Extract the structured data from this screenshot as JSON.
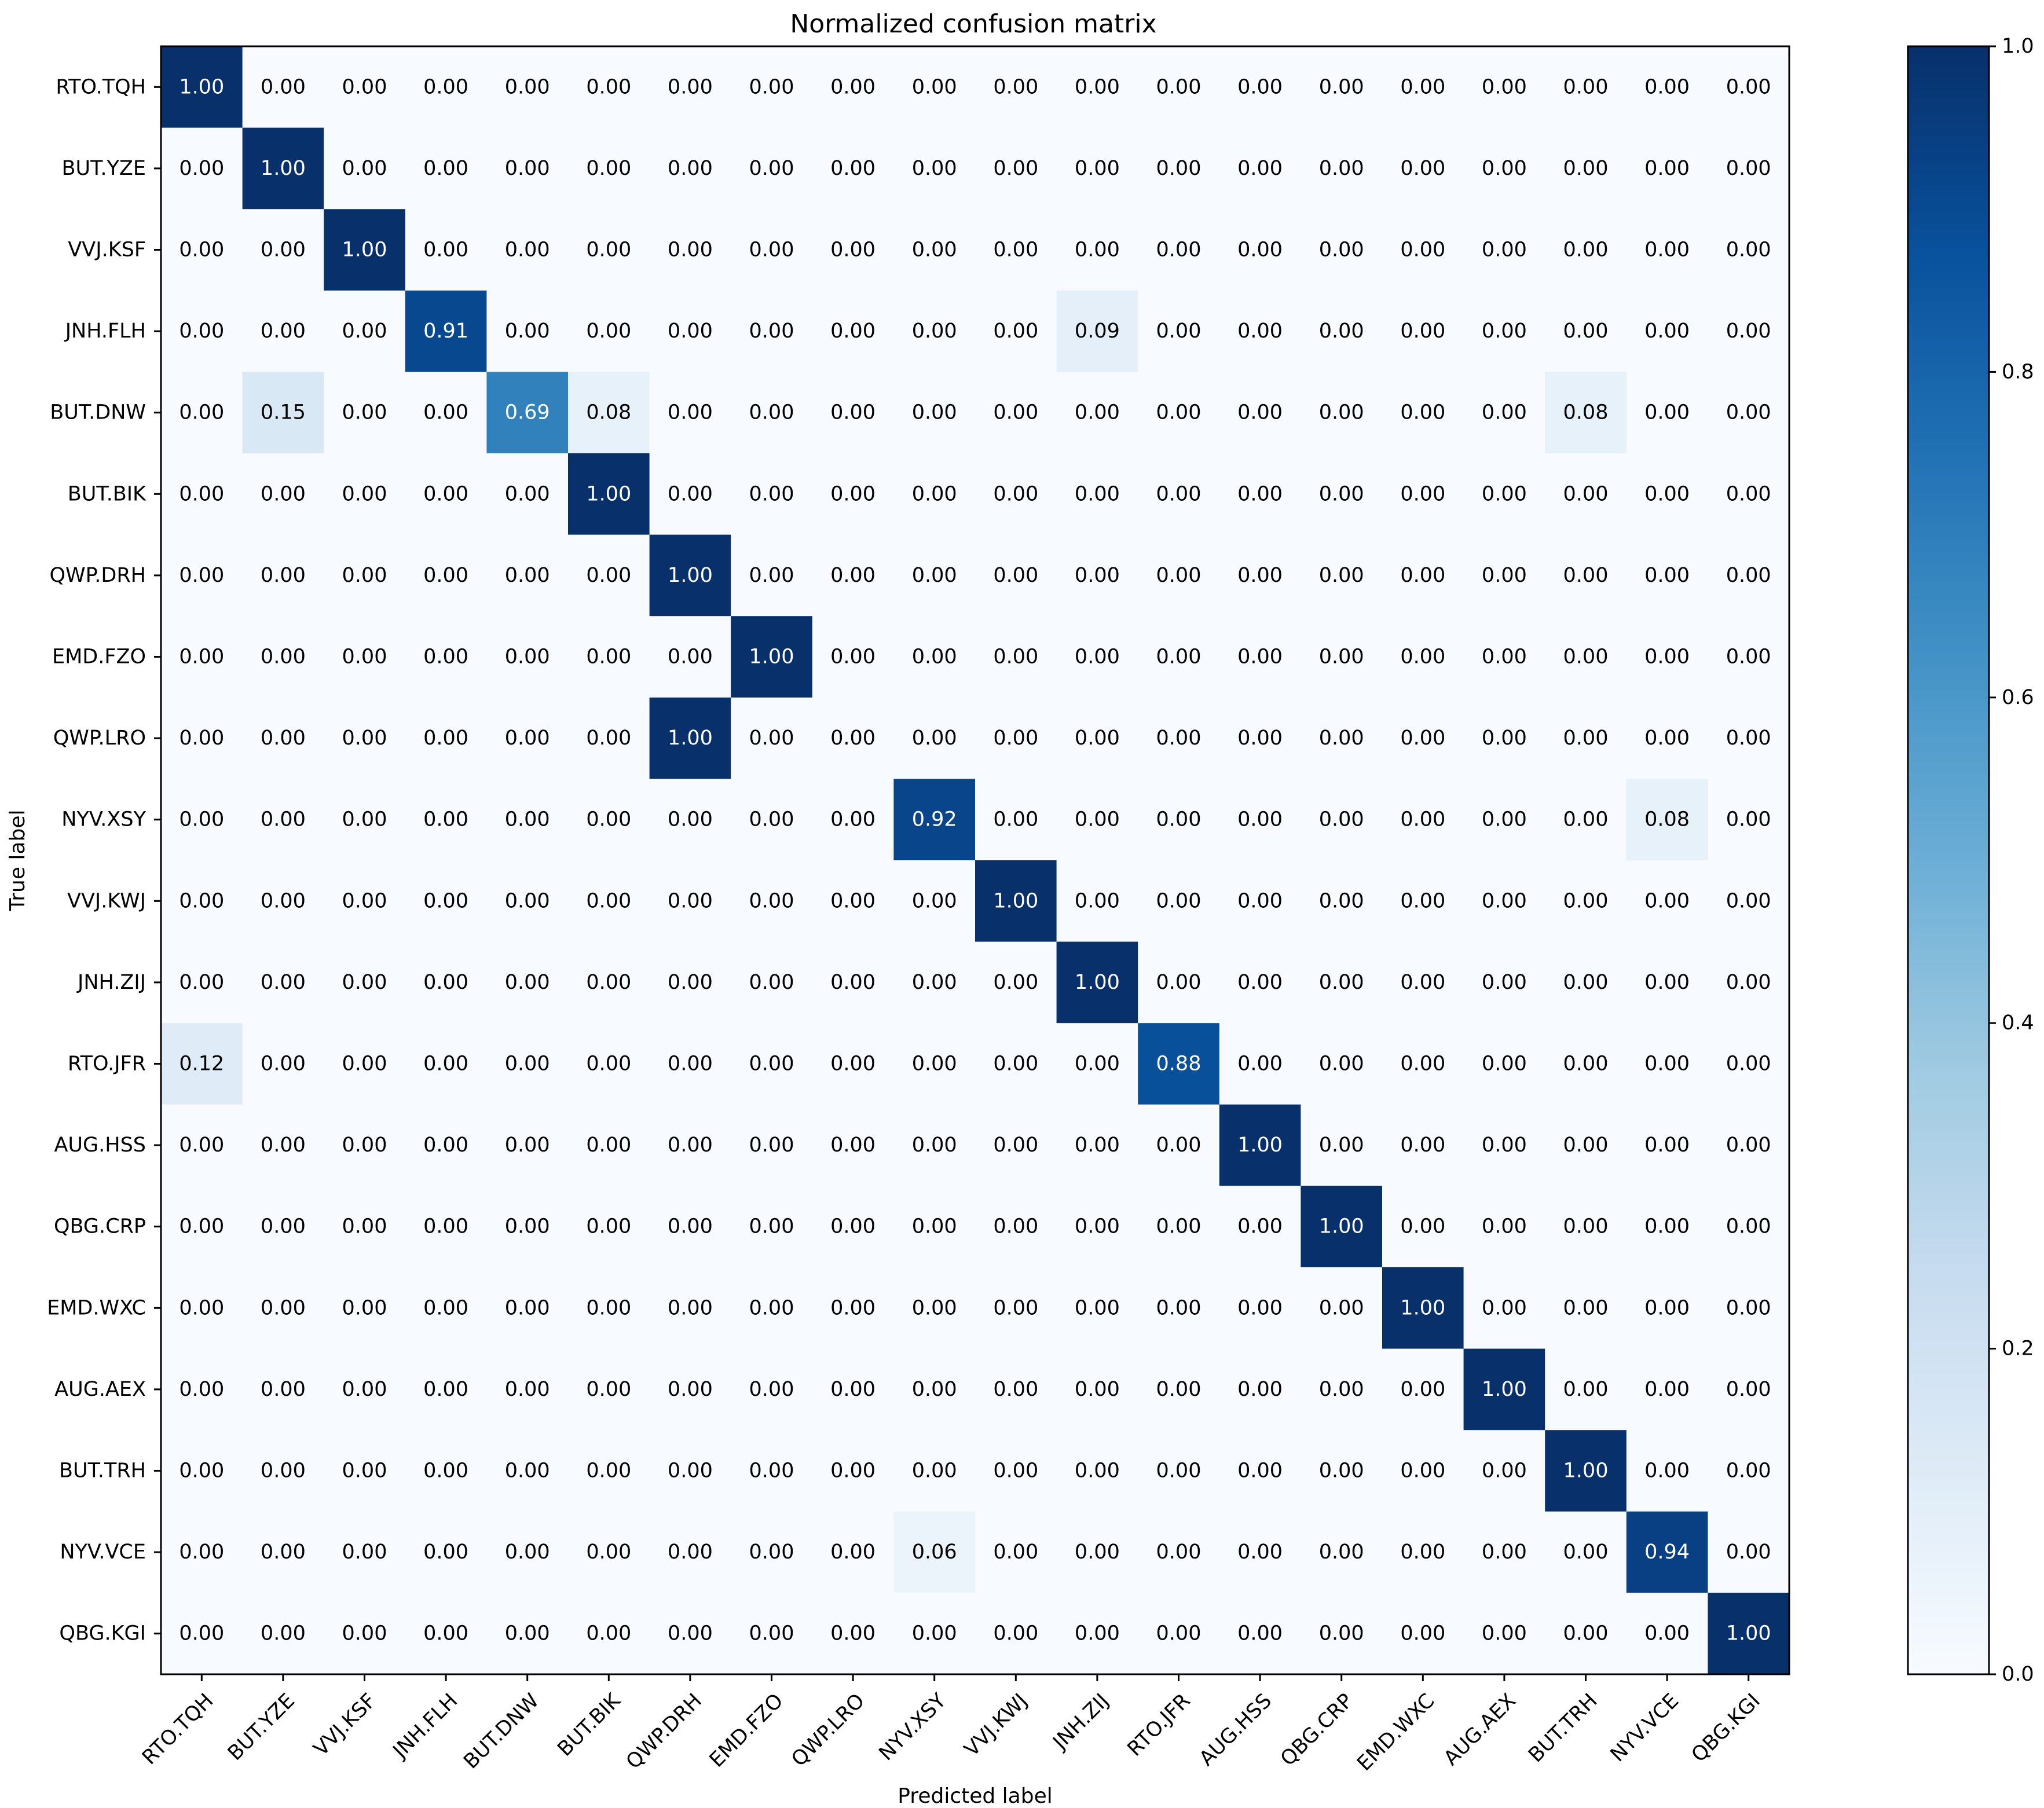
{
  "chart_data": {
    "type": "heatmap",
    "title": "Normalized confusion matrix",
    "xlabel": "Predicted label",
    "ylabel": "True label",
    "labels": [
      "RTO.TQH",
      "BUT.YZE",
      "VVJ.KSF",
      "JNH.FLH",
      "BUT.DNW",
      "BUT.BIK",
      "QWP.DRH",
      "EMD.FZO",
      "QWP.LRO",
      "NYV.XSY",
      "VVJ.KWJ",
      "JNH.ZIJ",
      "RTO.JFR",
      "AUG.HSS",
      "QBG.CRP",
      "EMD.WXC",
      "AUG.AEX",
      "BUT.TRH",
      "NYV.VCE",
      "QBG.KGI"
    ],
    "matrix": [
      [
        1.0,
        0,
        0,
        0,
        0,
        0,
        0,
        0,
        0,
        0,
        0,
        0,
        0,
        0,
        0,
        0,
        0,
        0,
        0,
        0
      ],
      [
        0,
        1.0,
        0,
        0,
        0,
        0,
        0,
        0,
        0,
        0,
        0,
        0,
        0,
        0,
        0,
        0,
        0,
        0,
        0,
        0
      ],
      [
        0,
        0,
        1.0,
        0,
        0,
        0,
        0,
        0,
        0,
        0,
        0,
        0,
        0,
        0,
        0,
        0,
        0,
        0,
        0,
        0
      ],
      [
        0,
        0,
        0,
        0.91,
        0,
        0,
        0,
        0,
        0,
        0,
        0,
        0.09,
        0,
        0,
        0,
        0,
        0,
        0,
        0,
        0
      ],
      [
        0,
        0.15,
        0,
        0,
        0.69,
        0.08,
        0,
        0,
        0,
        0,
        0,
        0,
        0,
        0,
        0,
        0,
        0,
        0.08,
        0,
        0
      ],
      [
        0,
        0,
        0,
        0,
        0,
        1.0,
        0,
        0,
        0,
        0,
        0,
        0,
        0,
        0,
        0,
        0,
        0,
        0,
        0,
        0
      ],
      [
        0,
        0,
        0,
        0,
        0,
        0,
        1.0,
        0,
        0,
        0,
        0,
        0,
        0,
        0,
        0,
        0,
        0,
        0,
        0,
        0
      ],
      [
        0,
        0,
        0,
        0,
        0,
        0,
        0,
        1.0,
        0,
        0,
        0,
        0,
        0,
        0,
        0,
        0,
        0,
        0,
        0,
        0
      ],
      [
        0,
        0,
        0,
        0,
        0,
        0,
        1.0,
        0,
        0,
        0,
        0,
        0,
        0,
        0,
        0,
        0,
        0,
        0,
        0,
        0
      ],
      [
        0,
        0,
        0,
        0,
        0,
        0,
        0,
        0,
        0,
        0.92,
        0,
        0,
        0,
        0,
        0,
        0,
        0,
        0,
        0.08,
        0
      ],
      [
        0,
        0,
        0,
        0,
        0,
        0,
        0,
        0,
        0,
        0,
        1.0,
        0,
        0,
        0,
        0,
        0,
        0,
        0,
        0,
        0
      ],
      [
        0,
        0,
        0,
        0,
        0,
        0,
        0,
        0,
        0,
        0,
        0,
        1.0,
        0,
        0,
        0,
        0,
        0,
        0,
        0,
        0
      ],
      [
        0.12,
        0,
        0,
        0,
        0,
        0,
        0,
        0,
        0,
        0,
        0,
        0,
        0.88,
        0,
        0,
        0,
        0,
        0,
        0,
        0
      ],
      [
        0,
        0,
        0,
        0,
        0,
        0,
        0,
        0,
        0,
        0,
        0,
        0,
        0,
        1.0,
        0,
        0,
        0,
        0,
        0,
        0
      ],
      [
        0,
        0,
        0,
        0,
        0,
        0,
        0,
        0,
        0,
        0,
        0,
        0,
        0,
        0,
        1.0,
        0,
        0,
        0,
        0,
        0
      ],
      [
        0,
        0,
        0,
        0,
        0,
        0,
        0,
        0,
        0,
        0,
        0,
        0,
        0,
        0,
        0,
        1.0,
        0,
        0,
        0,
        0
      ],
      [
        0,
        0,
        0,
        0,
        0,
        0,
        0,
        0,
        0,
        0,
        0,
        0,
        0,
        0,
        0,
        0,
        1.0,
        0,
        0,
        0
      ],
      [
        0,
        0,
        0,
        0,
        0,
        0,
        0,
        0,
        0,
        0,
        0,
        0,
        0,
        0,
        0,
        0,
        0,
        1.0,
        0,
        0
      ],
      [
        0,
        0,
        0,
        0,
        0,
        0,
        0,
        0,
        0,
        0.06,
        0,
        0,
        0,
        0,
        0,
        0,
        0,
        0,
        0.94,
        0
      ],
      [
        0,
        0,
        0,
        0,
        0,
        0,
        0,
        0,
        0,
        0,
        0,
        0,
        0,
        0,
        0,
        0,
        0,
        0,
        0,
        1.0
      ]
    ],
    "colorbar": {
      "range": [
        0,
        1
      ],
      "ticks": [
        0.0,
        0.2,
        0.4,
        0.6,
        0.8,
        1.0
      ],
      "tick_labels": [
        "0.0",
        "0.2",
        "0.4",
        "0.6",
        "0.8",
        "1.0"
      ],
      "colormap": "Blues"
    },
    "grid": false
  }
}
